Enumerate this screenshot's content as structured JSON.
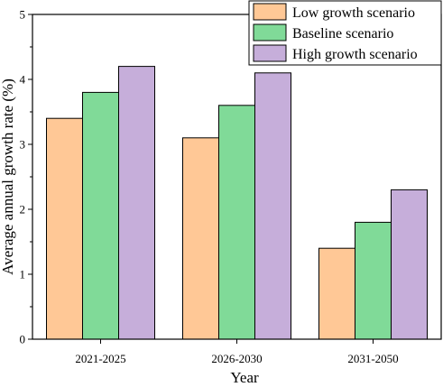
{
  "chart_data": {
    "type": "bar",
    "title": "",
    "xlabel": "Year",
    "ylabel": "Average annual growth rate (%)",
    "ylim": [
      0,
      5
    ],
    "yticks": [
      0,
      1,
      2,
      3,
      4,
      5
    ],
    "grid": false,
    "legend_position": "top-right",
    "categories": [
      "2021-2025",
      "2026-2030",
      "2031-2050"
    ],
    "series": [
      {
        "name": "Low growth scenario",
        "color": "#FFC896",
        "values": [
          3.4,
          3.1,
          1.4
        ]
      },
      {
        "name": "Baseline scenario",
        "color": "#80DA98",
        "values": [
          3.8,
          3.6,
          1.8
        ]
      },
      {
        "name": "High growth scenario",
        "color": "#C6AEDA",
        "values": [
          4.2,
          4.1,
          2.3
        ]
      }
    ]
  }
}
